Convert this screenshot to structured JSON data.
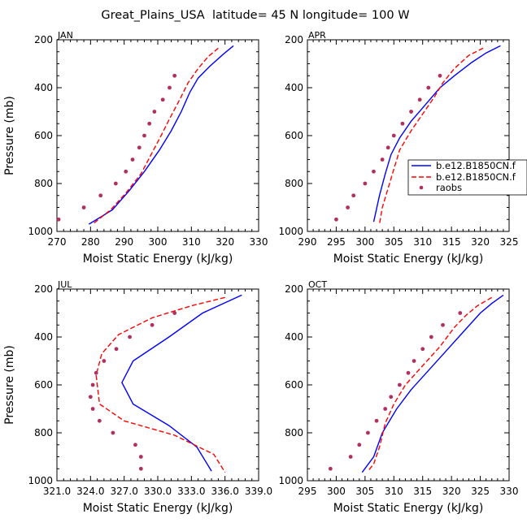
{
  "title": "Great_Plains_USA  latitude= 45 N longitude= 100 W",
  "colors": {
    "model1": "#0000ff",
    "model2": "#ff0000",
    "raobs": "#b03060",
    "frame": "#000000"
  },
  "legend": {
    "entries": [
      "b.e12.B1850CN.f",
      "b.e12.B1850CN.f",
      "raobs"
    ],
    "styles": [
      "solid",
      "dashed",
      "dots"
    ]
  },
  "chart_data": [
    {
      "type": "line",
      "panel_title": "JAN",
      "xlabel": "Moist Static Energy (kJ/kg)",
      "ylabel": "Pressure (mb)",
      "xlim": [
        270,
        330
      ],
      "ylim": [
        1000,
        200
      ],
      "xticks": [
        270,
        280,
        290,
        300,
        310,
        320,
        330
      ],
      "xtick_labels": [
        "270",
        "280",
        "290",
        "300",
        "310",
        "320",
        "330"
      ],
      "yticks": [
        200,
        400,
        600,
        800,
        1000
      ],
      "ytick_labels": [
        "200",
        "400",
        "600",
        "800",
        "1000"
      ],
      "series": [
        {
          "style": "solid",
          "color": "model1",
          "points": [
            [
              322.5,
              225
            ],
            [
              319.5,
              260
            ],
            [
              315.5,
              310
            ],
            [
              312,
              360
            ],
            [
              309.5,
              420
            ],
            [
              307,
              500
            ],
            [
              304,
              580
            ],
            [
              300.5,
              660
            ],
            [
              296,
              750
            ],
            [
              291.5,
              830
            ],
            [
              286.5,
              910
            ],
            [
              279.5,
              970
            ]
          ]
        },
        {
          "style": "dashed",
          "color": "model2",
          "points": [
            [
              318,
              235
            ],
            [
              315,
              270
            ],
            [
              312,
              320
            ],
            [
              309,
              380
            ],
            [
              306.5,
              450
            ],
            [
              303.5,
              530
            ],
            [
              301,
              600
            ],
            [
              298,
              680
            ],
            [
              295,
              760
            ],
            [
              290.5,
              840
            ],
            [
              286,
              910
            ],
            [
              281,
              965
            ]
          ]
        },
        {
          "style": "dots",
          "color": "raobs",
          "points": [
            [
              270.5,
              950
            ],
            [
              278,
              900
            ],
            [
              283,
              850
            ],
            [
              287.5,
              800
            ],
            [
              290.5,
              750
            ],
            [
              292.5,
              700
            ],
            [
              294.5,
              650
            ],
            [
              296,
              600
            ],
            [
              297.5,
              550
            ],
            [
              299,
              500
            ],
            [
              301.5,
              450
            ],
            [
              303.5,
              400
            ],
            [
              305,
              350
            ]
          ]
        }
      ]
    },
    {
      "type": "line",
      "panel_title": "APR",
      "xlabel": "Moist Static Energy (kJ/kg)",
      "ylabel": "",
      "xlim": [
        290,
        325
      ],
      "ylim": [
        1000,
        200
      ],
      "xticks": [
        290,
        295,
        300,
        305,
        310,
        315,
        320,
        325
      ],
      "xtick_labels": [
        "290",
        "295",
        "300",
        "305",
        "310",
        "315",
        "320",
        "325"
      ],
      "yticks": [
        200,
        400,
        600,
        800,
        1000
      ],
      "ytick_labels": [
        "200",
        "400",
        "600",
        "800",
        "1000"
      ],
      "series": [
        {
          "style": "solid",
          "color": "model1",
          "points": [
            [
              323.5,
              225
            ],
            [
              321,
              255
            ],
            [
              318.5,
              295
            ],
            [
              315.5,
              350
            ],
            [
              313,
              400
            ],
            [
              310.5,
              470
            ],
            [
              308,
              540
            ],
            [
              306,
              610
            ],
            [
              304.5,
              680
            ],
            [
              303.5,
              760
            ],
            [
              302.5,
              850
            ],
            [
              301.5,
              960
            ]
          ]
        },
        {
          "style": "dashed",
          "color": "model2",
          "points": [
            [
              320.5,
              235
            ],
            [
              318,
              265
            ],
            [
              315.5,
              320
            ],
            [
              313.5,
              380
            ],
            [
              312,
              440
            ],
            [
              310,
              510
            ],
            [
              308,
              580
            ],
            [
              306,
              660
            ],
            [
              305,
              740
            ],
            [
              304,
              820
            ],
            [
              303,
              900
            ],
            [
              302.5,
              970
            ]
          ]
        },
        {
          "style": "dots",
          "color": "raobs",
          "points": [
            [
              295,
              950
            ],
            [
              297,
              900
            ],
            [
              298,
              850
            ],
            [
              300,
              800
            ],
            [
              301.5,
              750
            ],
            [
              303,
              700
            ],
            [
              304,
              650
            ],
            [
              305,
              600
            ],
            [
              306.5,
              550
            ],
            [
              308,
              500
            ],
            [
              309.5,
              450
            ],
            [
              311,
              400
            ],
            [
              313,
              350
            ]
          ]
        }
      ]
    },
    {
      "type": "line",
      "panel_title": "JUL",
      "xlabel": "Moist Static Energy (kJ/kg)",
      "ylabel": "Pressure (mb)",
      "xlim": [
        321,
        339
      ],
      "ylim": [
        1000,
        200
      ],
      "xticks": [
        321,
        324,
        327,
        330,
        333,
        336,
        339
      ],
      "xtick_labels": [
        "321.0",
        "324.0",
        "327.0",
        "330.0",
        "333.0",
        "336.0",
        "339.0"
      ],
      "yticks": [
        200,
        400,
        600,
        800,
        1000
      ],
      "ytick_labels": [
        "200",
        "400",
        "600",
        "800",
        "1000"
      ],
      "series": [
        {
          "style": "solid",
          "color": "model1",
          "points": [
            [
              337.5,
              225
            ],
            [
              334,
              300
            ],
            [
              331,
              400
            ],
            [
              327.8,
              500
            ],
            [
              326.8,
              590
            ],
            [
              327.8,
              680
            ],
            [
              331,
              770
            ],
            [
              333.5,
              860
            ],
            [
              334.8,
              960
            ]
          ]
        },
        {
          "style": "dashed",
          "color": "model2",
          "points": [
            [
              336,
              235
            ],
            [
              333,
              270
            ],
            [
              329.5,
              320
            ],
            [
              326.5,
              390
            ],
            [
              325,
              470
            ],
            [
              324.5,
              560
            ],
            [
              324.8,
              680
            ],
            [
              327,
              750
            ],
            [
              331.5,
              810
            ],
            [
              335,
              890
            ],
            [
              336,
              965
            ]
          ]
        },
        {
          "style": "dots",
          "color": "raobs",
          "points": [
            [
              328.5,
              950
            ],
            [
              328.5,
              900
            ],
            [
              328,
              850
            ],
            [
              326,
              800
            ],
            [
              324.8,
              750
            ],
            [
              324.2,
              700
            ],
            [
              324,
              650
            ],
            [
              324.2,
              600
            ],
            [
              324.5,
              550
            ],
            [
              325.2,
              500
            ],
            [
              326.3,
              450
            ],
            [
              327.5,
              400
            ],
            [
              329.5,
              350
            ],
            [
              331.5,
              300
            ]
          ]
        }
      ]
    },
    {
      "type": "line",
      "panel_title": "OCT",
      "xlabel": "Moist Static Energy (kJ/kg)",
      "ylabel": "",
      "xlim": [
        295,
        330
      ],
      "ylim": [
        1000,
        200
      ],
      "xticks": [
        295,
        300,
        305,
        310,
        315,
        320,
        325,
        330
      ],
      "xtick_labels": [
        "295",
        "300",
        "305",
        "310",
        "315",
        "320",
        "325",
        "330"
      ],
      "yticks": [
        200,
        400,
        600,
        800,
        1000
      ],
      "ytick_labels": [
        "200",
        "400",
        "600",
        "800",
        "1000"
      ],
      "series": [
        {
          "style": "solid",
          "color": "model1",
          "points": [
            [
              329,
              225
            ],
            [
              327,
              260
            ],
            [
              325,
              300
            ],
            [
              322,
              380
            ],
            [
              319,
              460
            ],
            [
              316,
              540
            ],
            [
              313,
              620
            ],
            [
              310.5,
              700
            ],
            [
              308,
              800
            ],
            [
              306.5,
              900
            ],
            [
              304.5,
              965
            ]
          ]
        },
        {
          "style": "dashed",
          "color": "model2",
          "points": [
            [
              327,
              235
            ],
            [
              324.5,
              270
            ],
            [
              322.5,
              310
            ],
            [
              320.5,
              360
            ],
            [
              318,
              440
            ],
            [
              315,
              520
            ],
            [
              312,
              600
            ],
            [
              310,
              680
            ],
            [
              308.5,
              760
            ],
            [
              307.5,
              860
            ],
            [
              306.5,
              930
            ],
            [
              305.5,
              960
            ]
          ]
        },
        {
          "style": "dots",
          "color": "raobs",
          "points": [
            [
              299,
              950
            ],
            [
              302.5,
              900
            ],
            [
              304,
              850
            ],
            [
              305.5,
              800
            ],
            [
              307,
              750
            ],
            [
              308.5,
              700
            ],
            [
              309.5,
              650
            ],
            [
              311,
              600
            ],
            [
              312.5,
              550
            ],
            [
              313.5,
              500
            ],
            [
              315,
              450
            ],
            [
              316.5,
              400
            ],
            [
              318.5,
              350
            ],
            [
              321.5,
              300
            ]
          ]
        }
      ]
    }
  ]
}
